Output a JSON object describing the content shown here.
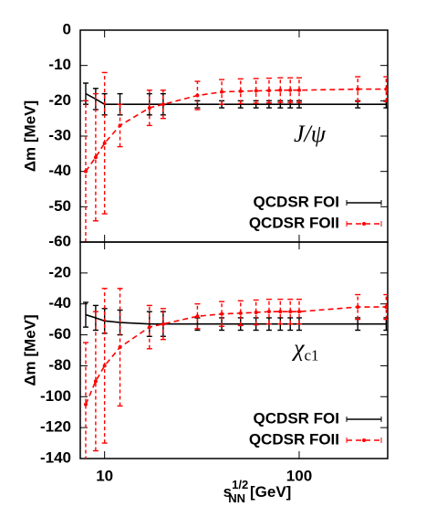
{
  "chart_data": [
    {
      "type": "line",
      "xscale": "log",
      "xlim": [
        7.5,
        285
      ],
      "ylim": [
        -60,
        0
      ],
      "yticks": [
        0,
        -10,
        -20,
        -30,
        -40,
        -50,
        -60
      ],
      "ylabel": "Δm [MeV]",
      "annotation": {
        "base": "J/ψ"
      },
      "legend": "lower right",
      "x": [
        8,
        9,
        10,
        12,
        17,
        20,
        30,
        40,
        50,
        60,
        70,
        80,
        90,
        100,
        200,
        280
      ],
      "series": [
        {
          "name": "QCDSR FOI",
          "color": "#000000",
          "dash": false,
          "marker": false,
          "values": [
            -18,
            -19.5,
            -21,
            -21,
            -21,
            -21,
            -21,
            -21,
            -21,
            -21,
            -21,
            -21,
            -21,
            -21,
            -21,
            -21
          ],
          "errors": [
            3,
            3,
            3,
            3,
            3,
            3,
            1,
            1,
            1,
            1,
            1,
            1,
            1,
            1,
            1,
            1
          ]
        },
        {
          "name": "QCDSR FOII",
          "color": "#ff0000",
          "dash": true,
          "marker": true,
          "values": [
            -40,
            -36,
            -32,
            -27,
            -22,
            -21,
            -18.5,
            -17.5,
            -17.3,
            -17.2,
            -17.1,
            -17,
            -17,
            -17,
            -16.7,
            -16.7
          ],
          "errors": [
            20,
            18,
            20,
            6,
            5,
            4,
            4,
            3.5,
            3.5,
            3.5,
            3.5,
            3.5,
            3.5,
            3.5,
            3.5,
            3.5
          ]
        }
      ]
    },
    {
      "type": "line",
      "xscale": "log",
      "xlim": [
        7.5,
        285
      ],
      "ylim": [
        -140,
        0
      ],
      "yticks": [
        -20,
        -40,
        -60,
        -80,
        -100,
        -120,
        -140
      ],
      "xticks": [
        10,
        100
      ],
      "xlabel": {
        "base": "s",
        "sup": "1/2",
        "sub": "NN",
        "unit": "[GeV]"
      },
      "ylabel": "Δm [MeV]",
      "annotation": {
        "base": "χ",
        "sub": "c1"
      },
      "legend": "lower right",
      "x": [
        8,
        9,
        10,
        12,
        17,
        20,
        30,
        40,
        50,
        60,
        70,
        80,
        90,
        100,
        200,
        280
      ],
      "series": [
        {
          "name": "QCDSR FOI",
          "color": "#000000",
          "dash": false,
          "marker": false,
          "values": [
            -47,
            -49,
            -51,
            -52,
            -53,
            -53,
            -53,
            -53,
            -53,
            -53,
            -53,
            -53,
            -53,
            -53,
            -53,
            -53
          ],
          "errors": [
            8,
            8,
            8,
            8,
            8,
            8,
            4,
            4,
            4,
            4,
            4,
            4,
            4,
            4,
            4,
            4
          ]
        },
        {
          "name": "QCDSR FOII",
          "color": "#ff0000",
          "dash": true,
          "marker": true,
          "values": [
            -105,
            -90,
            -80,
            -68,
            -55,
            -53,
            -48,
            -46.5,
            -46,
            -45.5,
            -45,
            -45,
            -45,
            -45,
            -42,
            -42
          ],
          "errors": [
            40,
            45,
            50,
            38,
            14,
            10,
            8,
            8,
            8,
            8,
            8,
            8,
            8,
            8,
            8,
            8
          ]
        }
      ]
    }
  ]
}
